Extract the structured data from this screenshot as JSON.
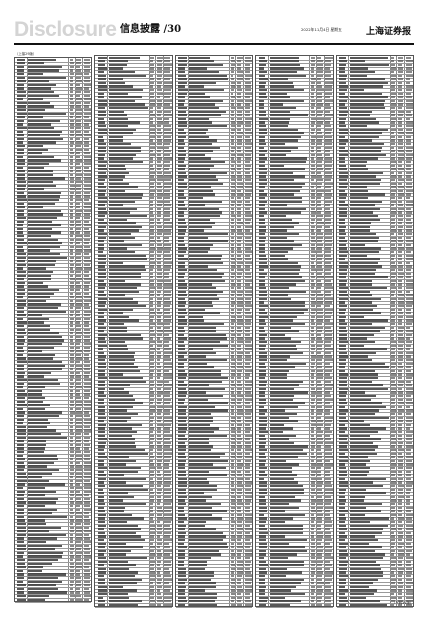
{
  "masthead": {
    "brand": "Disclosure",
    "section": "信息披露 /30",
    "dateline": "2022年11月4日 星期五",
    "paper": "上海证券报"
  },
  "page": {
    "subhead": "（上接29版）",
    "continued": "（下转31版）"
  },
  "table": {
    "columns": 5,
    "rows_per_column": 153,
    "content_legible": false
  }
}
